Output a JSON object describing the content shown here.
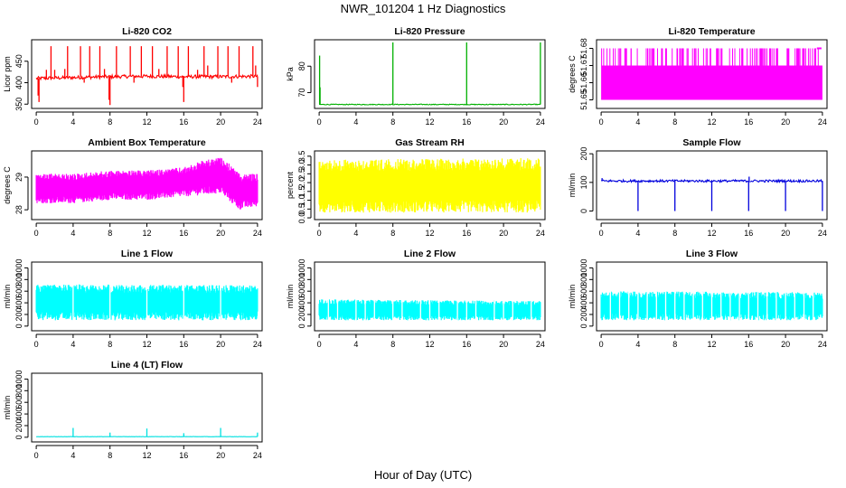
{
  "figure": {
    "title": "NWR_101204 1 Hz Diagnostics",
    "xlabel": "Hour of Day (UTC)"
  },
  "chart_data": [
    {
      "type": "line",
      "title": "Li-820 CO2",
      "ylabel": "Licor ppm",
      "color": "#ff0000",
      "xlim": [
        -0.5,
        24.5
      ],
      "ylim": [
        340,
        500
      ],
      "xticks": [
        0,
        4,
        8,
        12,
        16,
        20,
        24
      ],
      "yticks": [
        350,
        400,
        450
      ],
      "baseline": [
        [
          0,
          410
        ],
        [
          4,
          412
        ],
        [
          8,
          414
        ],
        [
          12,
          415
        ],
        [
          16,
          414
        ],
        [
          20,
          414
        ],
        [
          24,
          415
        ]
      ],
      "noise": 4,
      "spikes": [
        [
          0.2,
          370
        ],
        [
          0.3,
          355
        ],
        [
          1.1,
          430
        ],
        [
          1.6,
          485
        ],
        [
          2.0,
          430
        ],
        [
          3.1,
          432
        ],
        [
          3.4,
          485
        ],
        [
          4.8,
          485
        ],
        [
          5.2,
          400
        ],
        [
          5.8,
          485
        ],
        [
          6.9,
          485
        ],
        [
          7.4,
          432
        ],
        [
          7.9,
          360
        ],
        [
          8.0,
          348
        ],
        [
          8.7,
          485
        ],
        [
          10.2,
          485
        ],
        [
          10.6,
          400
        ],
        [
          11.4,
          485
        ],
        [
          12.6,
          485
        ],
        [
          13.3,
          432
        ],
        [
          14.2,
          485
        ],
        [
          15.4,
          485
        ],
        [
          15.9,
          390
        ],
        [
          16.0,
          355
        ],
        [
          16.5,
          485
        ],
        [
          17.5,
          430
        ],
        [
          18.2,
          485
        ],
        [
          18.6,
          440
        ],
        [
          19.7,
          485
        ],
        [
          20.8,
          485
        ],
        [
          21.2,
          400
        ],
        [
          22.0,
          485
        ],
        [
          23.5,
          485
        ],
        [
          23.8,
          440
        ],
        [
          24.0,
          390
        ]
      ]
    },
    {
      "type": "line",
      "title": "Li-820 Pressure",
      "ylabel": "kPa",
      "color": "#00b000",
      "xlim": [
        -0.5,
        24.5
      ],
      "ylim": [
        64,
        90
      ],
      "xticks": [
        0,
        4,
        8,
        12,
        16,
        20,
        24
      ],
      "yticks": [
        70,
        80
      ],
      "baseline": [
        [
          0,
          65.5
        ],
        [
          24,
          65.5
        ]
      ],
      "noise": 0.15,
      "spikes": [
        [
          0.05,
          84
        ],
        [
          0.1,
          72
        ],
        [
          8.0,
          89
        ],
        [
          16.0,
          89
        ],
        [
          24.0,
          89
        ]
      ]
    },
    {
      "type": "area",
      "title": "Li-820 Temperature",
      "ylabel": "degrees C",
      "color": "#ff00ff",
      "xlim": [
        -0.5,
        24.5
      ],
      "ylim": [
        51.645,
        51.685
      ],
      "xticks": [
        0,
        4,
        8,
        12,
        16,
        20,
        24
      ],
      "yticks": [
        "51.65",
        "51.66",
        "51.67",
        "51.68"
      ],
      "band": [
        51.65,
        51.67
      ],
      "upper_level": 51.68
    },
    {
      "type": "area",
      "title": "Ambient Box Temperature",
      "ylabel": "degrees C",
      "color": "#ff00ff",
      "xlim": [
        -0.5,
        24.5
      ],
      "ylim": [
        27.7,
        29.8
      ],
      "xticks": [
        0,
        4,
        8,
        12,
        16,
        20,
        24
      ],
      "yticks": [
        28.0,
        29.0
      ],
      "low": [
        [
          0,
          28.2
        ],
        [
          4,
          28.2
        ],
        [
          8,
          28.3
        ],
        [
          12,
          28.3
        ],
        [
          16,
          28.4
        ],
        [
          20,
          28.5
        ],
        [
          22,
          28.0
        ],
        [
          24,
          28.1
        ]
      ],
      "high": [
        [
          0,
          29.1
        ],
        [
          4,
          29.1
        ],
        [
          8,
          29.2
        ],
        [
          12,
          29.2
        ],
        [
          16,
          29.3
        ],
        [
          18,
          29.5
        ],
        [
          20,
          29.6
        ],
        [
          21,
          29.4
        ],
        [
          22,
          29.1
        ],
        [
          24,
          29.1
        ]
      ]
    },
    {
      "type": "area",
      "title": "Gas Stream RH",
      "ylabel": "percent",
      "color": "#ffff00",
      "xlim": [
        -0.5,
        24.5
      ],
      "ylim": [
        -0.1,
        3.8
      ],
      "xticks": [
        0,
        4,
        8,
        12,
        16,
        20,
        24
      ],
      "yticks": [
        "0.0",
        "0.5",
        "1.0",
        "1.5",
        "2.0",
        "2.5",
        "3.0",
        "3.5"
      ],
      "low": [
        [
          0,
          0.3
        ],
        [
          24,
          0.3
        ]
      ],
      "high": [
        [
          0,
          3.3
        ],
        [
          24,
          3.4
        ]
      ]
    },
    {
      "type": "line",
      "title": "Sample Flow",
      "ylabel": "ml/min",
      "color": "#0000dd",
      "xlim": [
        -0.5,
        24.5
      ],
      "ylim": [
        -30,
        210
      ],
      "xticks": [
        0,
        4,
        8,
        12,
        16,
        20,
        24
      ],
      "yticks": [
        0,
        100,
        200
      ],
      "baseline": [
        [
          0,
          105
        ],
        [
          24,
          105
        ]
      ],
      "noise": 4,
      "spikes": [
        [
          0.1,
          115
        ],
        [
          4.0,
          0
        ],
        [
          8.0,
          0
        ],
        [
          12.0,
          0
        ],
        [
          16.0,
          0
        ],
        [
          16.05,
          120
        ],
        [
          20.0,
          0
        ],
        [
          24.0,
          0
        ]
      ]
    },
    {
      "type": "area",
      "title": "Line 1 Flow",
      "ylabel": "ml/min",
      "color": "#00ffff",
      "xlim": [
        -0.5,
        24.5
      ],
      "ylim": [
        -80,
        1100
      ],
      "xticks": [
        0,
        4,
        8,
        12,
        16,
        20,
        24
      ],
      "yticks": [
        0,
        200,
        400,
        600,
        800,
        1000
      ],
      "low": [
        [
          0,
          100
        ],
        [
          24,
          100
        ]
      ],
      "high": [
        [
          0,
          720
        ],
        [
          24,
          700
        ]
      ],
      "gaps": [
        4,
        8,
        12,
        16,
        20
      ]
    },
    {
      "type": "area",
      "title": "Line 2 Flow",
      "ylabel": "ml/min",
      "color": "#00ffff",
      "xlim": [
        -0.5,
        24.5
      ],
      "ylim": [
        -80,
        1100
      ],
      "xticks": [
        0,
        4,
        8,
        12,
        16,
        20,
        24
      ],
      "yticks": [
        0,
        200,
        400,
        600,
        800,
        1000
      ],
      "low": [
        [
          0,
          100
        ],
        [
          24,
          100
        ]
      ],
      "high": [
        [
          0,
          460
        ],
        [
          24,
          430
        ]
      ],
      "gaps": [
        1,
        2,
        4,
        5,
        6,
        8,
        9,
        11,
        12,
        13,
        15,
        16,
        17,
        19,
        20,
        21,
        23
      ]
    },
    {
      "type": "area",
      "title": "Line 3 Flow",
      "ylabel": "ml/min",
      "color": "#00ffff",
      "xlim": [
        -0.5,
        24.5
      ],
      "ylim": [
        -80,
        1100
      ],
      "xticks": [
        0,
        4,
        8,
        12,
        16,
        20,
        24
      ],
      "yticks": [
        0,
        200,
        400,
        600,
        800,
        1000
      ],
      "low": [
        [
          0,
          100
        ],
        [
          24,
          100
        ]
      ],
      "high": [
        [
          0,
          600
        ],
        [
          24,
          580
        ]
      ],
      "gaps": [
        1,
        2,
        3,
        4,
        5,
        6,
        7,
        8,
        9,
        10,
        11,
        12,
        13,
        14,
        15,
        16,
        17,
        18,
        19,
        20,
        21,
        22,
        23
      ]
    },
    {
      "type": "line",
      "title": "Line 4 (LT) Flow",
      "ylabel": "ml/min",
      "color": "#00e0e0",
      "xlim": [
        -0.5,
        24.5
      ],
      "ylim": [
        -80,
        1100
      ],
      "xticks": [
        0,
        4,
        8,
        12,
        16,
        20,
        24
      ],
      "yticks": [
        0,
        200,
        400,
        600,
        800,
        1000
      ],
      "baseline": [
        [
          0,
          10
        ],
        [
          24,
          10
        ]
      ],
      "noise": 2,
      "spikes": [
        [
          4.0,
          160
        ],
        [
          8.0,
          80
        ],
        [
          12.0,
          150
        ],
        [
          16.0,
          70
        ],
        [
          20.0,
          160
        ],
        [
          24.0,
          80
        ]
      ]
    }
  ]
}
